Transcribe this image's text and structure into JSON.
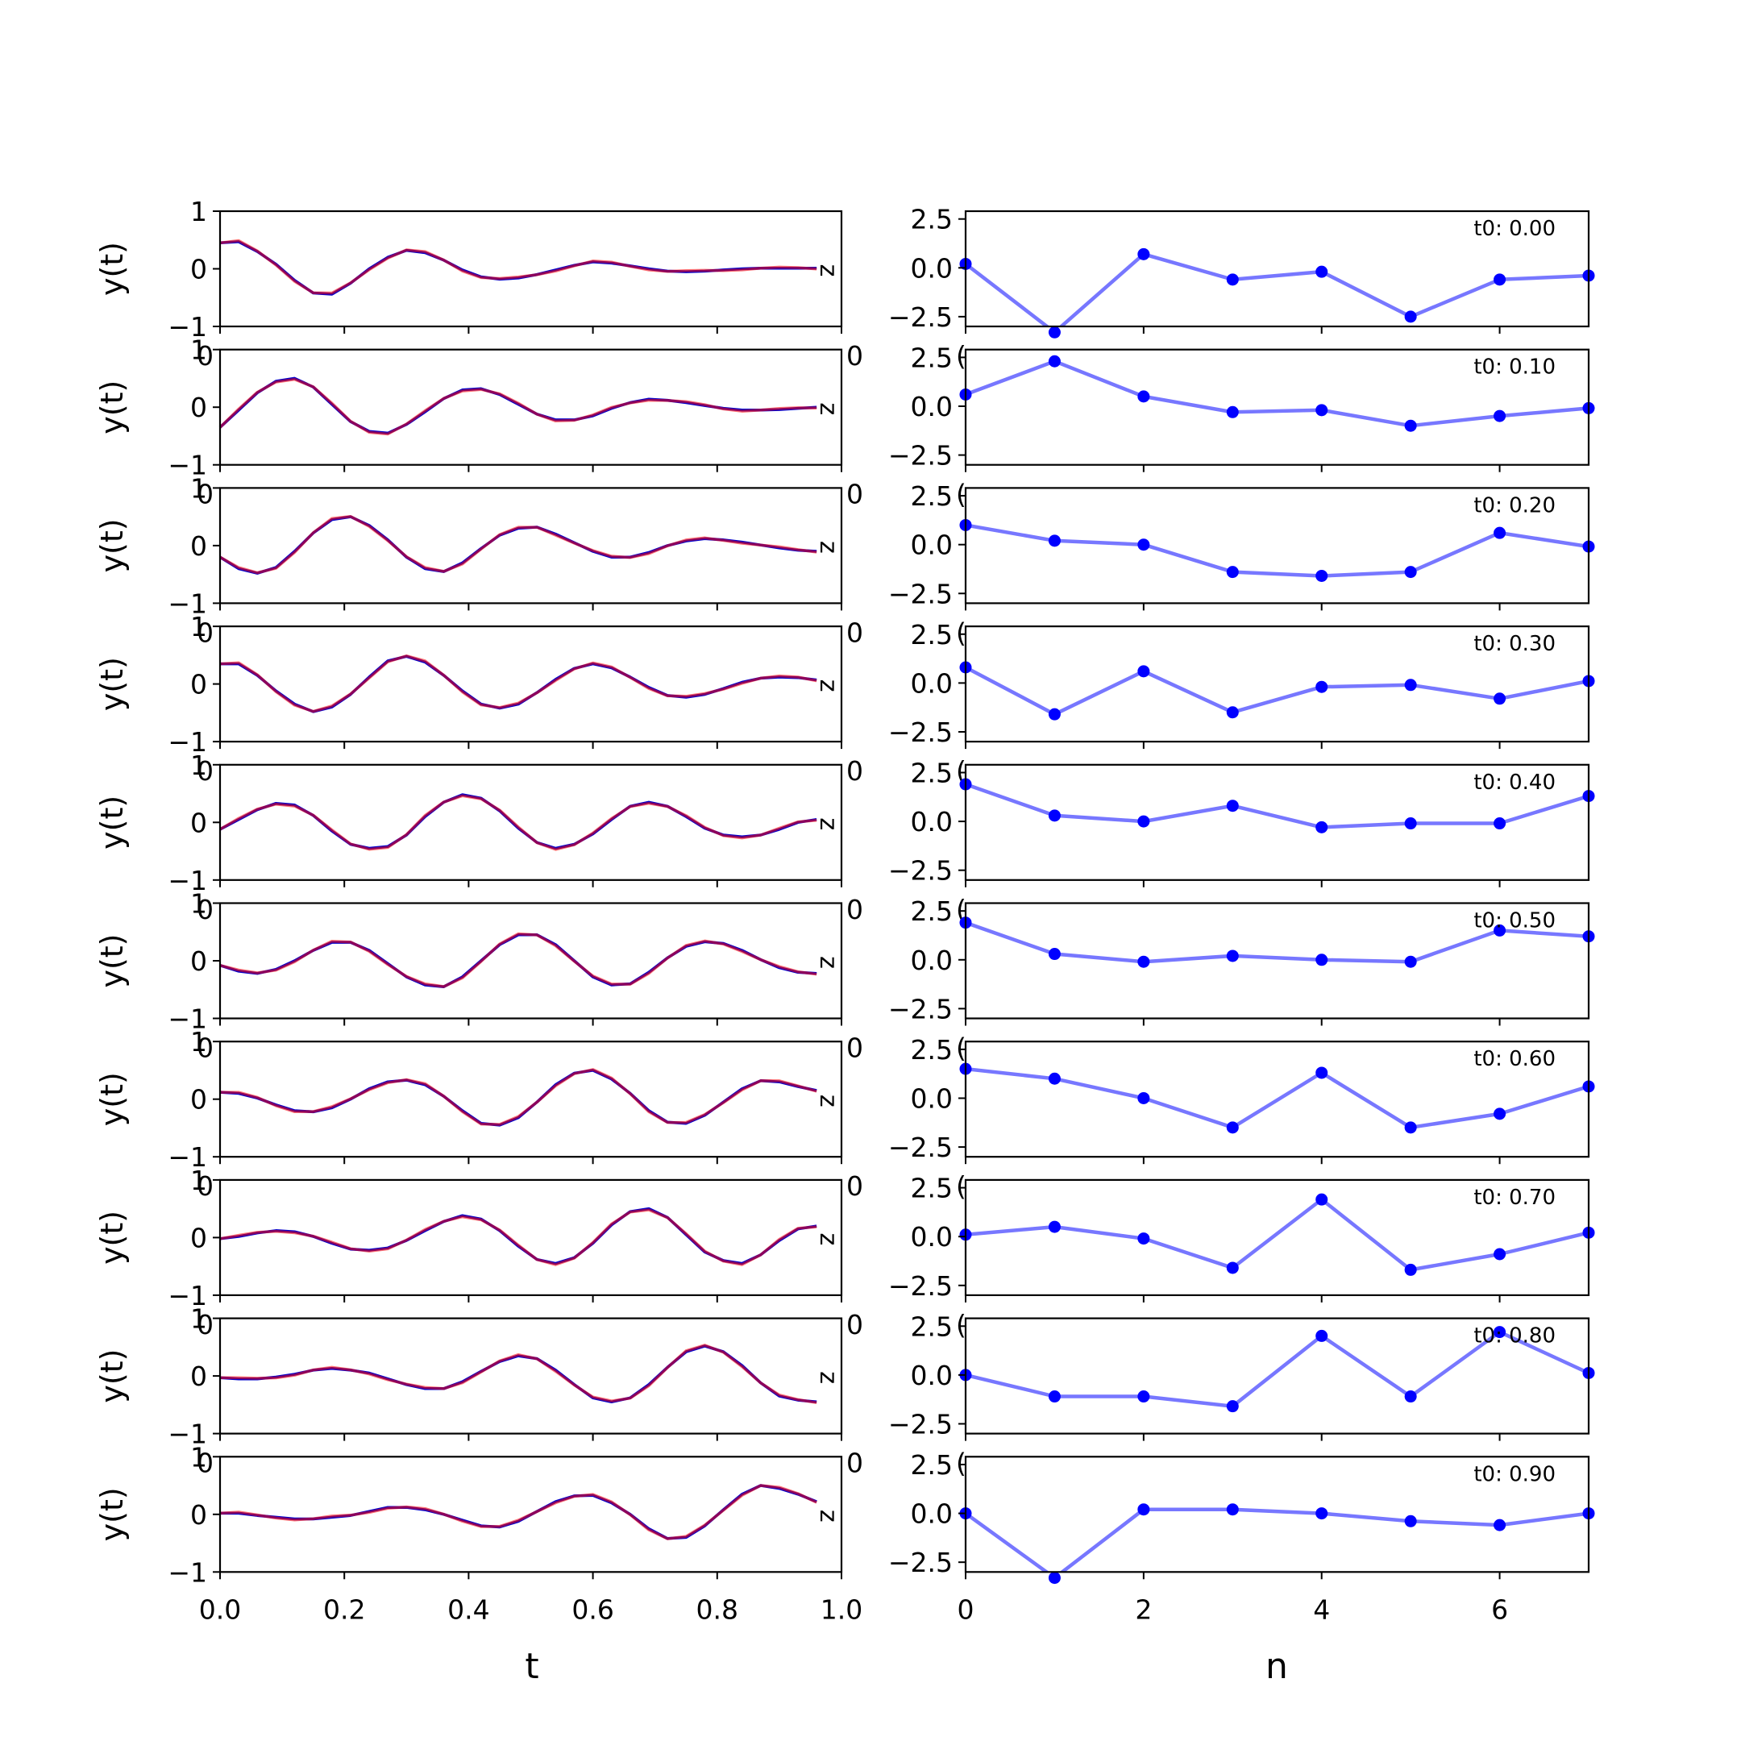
{
  "figure": {
    "left_xlabel": "t",
    "right_xlabel": "n",
    "left_ylabel": "y(t)"
  },
  "chart_data": [
    {
      "type": "line",
      "panel": "left",
      "description": "10 stacked panels, each shows two overlapping curves (red and blue) y(t)",
      "xlim": [
        0,
        1
      ],
      "ylim": [
        -1,
        1
      ],
      "xticks": [
        "0.0",
        "0.2",
        "0.4",
        "0.6",
        "0.8",
        "1.0"
      ],
      "yticks": [
        "-1",
        "0",
        "1"
      ],
      "ylabel": "y(t)",
      "xlabel": "t",
      "colors": {
        "red": "#ff0000",
        "blue": "#0000cc"
      },
      "t": [
        0.0,
        0.03,
        0.06,
        0.09,
        0.12,
        0.15,
        0.18,
        0.21,
        0.24,
        0.27,
        0.3,
        0.33,
        0.36,
        0.39,
        0.42,
        0.45,
        0.48,
        0.51,
        0.54,
        0.57,
        0.6,
        0.63,
        0.66,
        0.69,
        0.72,
        0.75,
        0.78,
        0.81,
        0.84,
        0.87,
        0.9,
        0.93,
        0.96
      ],
      "panels": [
        {
          "y": [
            0.45,
            0.47,
            0.3,
            0.08,
            -0.2,
            -0.42,
            -0.44,
            -0.25,
            0.0,
            0.2,
            0.32,
            0.28,
            0.15,
            -0.02,
            -0.14,
            -0.18,
            -0.16,
            -0.1,
            -0.02,
            0.06,
            0.12,
            0.1,
            0.05,
            0.0,
            -0.04,
            -0.05,
            -0.04,
            -0.02,
            0.0,
            0.01,
            0.01,
            0.01,
            0.01
          ]
        },
        {
          "y": [
            -0.35,
            -0.05,
            0.25,
            0.45,
            0.5,
            0.35,
            0.05,
            -0.25,
            -0.42,
            -0.45,
            -0.3,
            -0.08,
            0.15,
            0.3,
            0.32,
            0.22,
            0.05,
            -0.12,
            -0.22,
            -0.22,
            -0.15,
            -0.02,
            0.08,
            0.14,
            0.12,
            0.08,
            0.03,
            -0.02,
            -0.05,
            -0.05,
            -0.04,
            -0.02,
            0.0
          ]
        },
        {
          "y": [
            -0.2,
            -0.4,
            -0.48,
            -0.38,
            -0.1,
            0.22,
            0.45,
            0.5,
            0.35,
            0.1,
            -0.2,
            -0.4,
            -0.45,
            -0.3,
            -0.05,
            0.18,
            0.3,
            0.32,
            0.2,
            0.05,
            -0.1,
            -0.2,
            -0.2,
            -0.12,
            0.0,
            0.08,
            0.12,
            0.1,
            0.06,
            0.01,
            -0.04,
            -0.08,
            -0.1
          ]
        },
        {
          "y": [
            0.35,
            0.35,
            0.15,
            -0.12,
            -0.35,
            -0.48,
            -0.4,
            -0.18,
            0.12,
            0.4,
            0.48,
            0.38,
            0.15,
            -0.12,
            -0.35,
            -0.42,
            -0.35,
            -0.15,
            0.08,
            0.27,
            0.35,
            0.28,
            0.12,
            -0.06,
            -0.2,
            -0.23,
            -0.18,
            -0.08,
            0.03,
            0.1,
            0.12,
            0.11,
            0.07
          ]
        },
        {
          "y": [
            -0.12,
            0.05,
            0.22,
            0.33,
            0.3,
            0.12,
            -0.15,
            -0.38,
            -0.45,
            -0.42,
            -0.22,
            0.1,
            0.35,
            0.48,
            0.42,
            0.2,
            -0.1,
            -0.35,
            -0.45,
            -0.38,
            -0.2,
            0.05,
            0.28,
            0.35,
            0.28,
            0.1,
            -0.1,
            -0.22,
            -0.25,
            -0.22,
            -0.12,
            0.0,
            0.05
          ]
        },
        {
          "y": [
            -0.08,
            -0.18,
            -0.22,
            -0.15,
            0.0,
            0.18,
            0.32,
            0.32,
            0.18,
            -0.05,
            -0.28,
            -0.42,
            -0.45,
            -0.28,
            0.0,
            0.28,
            0.45,
            0.45,
            0.28,
            0.0,
            -0.28,
            -0.42,
            -0.4,
            -0.2,
            0.05,
            0.25,
            0.33,
            0.3,
            0.18,
            0.02,
            -0.12,
            -0.2,
            -0.22
          ]
        },
        {
          "y": [
            0.12,
            0.1,
            0.02,
            -0.1,
            -0.2,
            -0.22,
            -0.15,
            0.0,
            0.18,
            0.3,
            0.33,
            0.25,
            0.05,
            -0.2,
            -0.42,
            -0.45,
            -0.32,
            -0.05,
            0.25,
            0.45,
            0.5,
            0.35,
            0.1,
            -0.2,
            -0.4,
            -0.42,
            -0.28,
            -0.05,
            0.18,
            0.32,
            0.3,
            0.22,
            0.15
          ]
        },
        {
          "y": [
            -0.02,
            0.02,
            0.08,
            0.12,
            0.1,
            0.02,
            -0.1,
            -0.2,
            -0.22,
            -0.18,
            -0.05,
            0.12,
            0.28,
            0.38,
            0.32,
            0.12,
            -0.15,
            -0.38,
            -0.45,
            -0.35,
            -0.1,
            0.22,
            0.45,
            0.5,
            0.35,
            0.05,
            -0.25,
            -0.4,
            -0.45,
            -0.3,
            -0.05,
            0.15,
            0.2
          ]
        },
        {
          "y": [
            -0.03,
            -0.05,
            -0.05,
            -0.02,
            0.03,
            0.1,
            0.13,
            0.1,
            0.05,
            -0.05,
            -0.15,
            -0.22,
            -0.22,
            -0.1,
            0.08,
            0.25,
            0.35,
            0.3,
            0.1,
            -0.15,
            -0.38,
            -0.45,
            -0.38,
            -0.15,
            0.15,
            0.42,
            0.52,
            0.42,
            0.18,
            -0.12,
            -0.35,
            -0.42,
            -0.45
          ]
        },
        {
          "y": [
            0.02,
            0.02,
            -0.02,
            -0.05,
            -0.08,
            -0.08,
            -0.05,
            -0.02,
            0.05,
            0.12,
            0.12,
            0.08,
            0.0,
            -0.1,
            -0.2,
            -0.22,
            -0.12,
            0.05,
            0.22,
            0.32,
            0.33,
            0.2,
            0.0,
            -0.25,
            -0.42,
            -0.4,
            -0.2,
            0.08,
            0.35,
            0.5,
            0.45,
            0.35,
            0.22
          ]
        }
      ]
    },
    {
      "type": "line",
      "panel": "right",
      "description": "10 stacked panels, each a line with markers over n = 0..7",
      "xlim": [
        0,
        7
      ],
      "ylim": [
        -3,
        2.9
      ],
      "xticks": [
        "0",
        "2",
        "4",
        "6"
      ],
      "yticks": [
        "2.5",
        "0.0",
        "-2.5"
      ],
      "xlabel": "n",
      "colors": {
        "line": "#7777ff",
        "marker": "#0000ff"
      },
      "n": [
        0,
        1,
        2,
        3,
        4,
        5,
        6,
        7
      ],
      "panels": [
        {
          "label": "t0: 0.00",
          "y": [
            0.2,
            -3.3,
            0.7,
            -0.6,
            -0.2,
            -2.5,
            -0.6,
            -0.4
          ]
        },
        {
          "label": "t0: 0.10",
          "y": [
            0.6,
            2.3,
            0.5,
            -0.3,
            -0.2,
            -1.0,
            -0.5,
            -0.1
          ]
        },
        {
          "label": "t0: 0.20",
          "y": [
            1.0,
            0.2,
            0.0,
            -1.4,
            -1.6,
            -1.4,
            0.6,
            -0.1
          ]
        },
        {
          "label": "t0: 0.30",
          "y": [
            0.8,
            -1.6,
            0.6,
            -1.5,
            -0.2,
            -0.1,
            -0.8,
            0.1
          ]
        },
        {
          "label": "t0: 0.40",
          "y": [
            1.9,
            0.3,
            0.0,
            0.8,
            -0.3,
            -0.1,
            -0.1,
            1.3
          ]
        },
        {
          "label": "t0: 0.50",
          "y": [
            1.9,
            0.3,
            -0.1,
            0.2,
            0.0,
            -0.1,
            1.5,
            1.2
          ]
        },
        {
          "label": "t0: 0.60",
          "y": [
            1.5,
            1.0,
            0.0,
            -1.5,
            1.3,
            -1.5,
            -0.8,
            0.6
          ]
        },
        {
          "label": "t0: 0.70",
          "y": [
            0.1,
            0.5,
            -0.1,
            -1.6,
            1.9,
            -1.7,
            -0.9,
            0.2
          ]
        },
        {
          "label": "t0: 0.80",
          "y": [
            0.0,
            -1.1,
            -1.1,
            -1.6,
            2.0,
            -1.1,
            2.2,
            0.1
          ]
        },
        {
          "label": "t0: 0.90",
          "y": [
            0.0,
            -3.3,
            0.2,
            0.2,
            0.0,
            -0.4,
            -0.6,
            0.0
          ]
        }
      ]
    }
  ]
}
